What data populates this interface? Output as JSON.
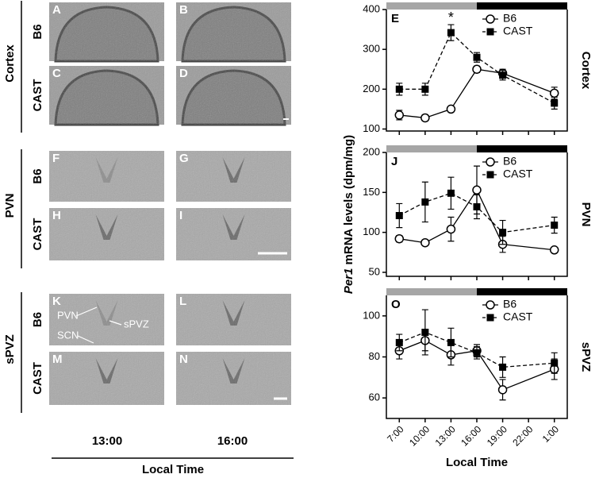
{
  "panels": {
    "rows": [
      {
        "region": "Cortex",
        "strains": [
          "B6",
          "CAST"
        ],
        "letters": [
          [
            "A",
            "B"
          ],
          [
            "C",
            "D"
          ]
        ]
      },
      {
        "region": "PVN",
        "strains": [
          "B6",
          "CAST"
        ],
        "letters": [
          [
            "F",
            "G"
          ],
          [
            "H",
            "I"
          ]
        ]
      },
      {
        "region": "sPVZ",
        "strains": [
          "B6",
          "CAST"
        ],
        "letters": [
          [
            "K",
            "L"
          ],
          [
            "M",
            "N"
          ]
        ]
      }
    ],
    "annotations": [
      "PVN",
      "SCN",
      "sPVZ"
    ],
    "times": [
      "13:00",
      "16:00"
    ],
    "xlabel": "Local Time"
  },
  "ylabel": [
    "Per1",
    "mRNA levels (dpm/mg)"
  ],
  "chart_data": [
    {
      "type": "line",
      "panel": "E",
      "region": "Cortex",
      "x": [
        7,
        10,
        13,
        16,
        19,
        25
      ],
      "xlim": [
        5.5,
        26.5
      ],
      "xticks": [
        {
          "value": 7,
          "label": "7:00"
        },
        {
          "value": 10,
          "label": "10:00"
        },
        {
          "value": 13,
          "label": "13:00"
        },
        {
          "value": 16,
          "label": "16:00"
        },
        {
          "value": 19,
          "label": "19:00"
        },
        {
          "value": 22,
          "label": "22:00"
        },
        {
          "value": 25,
          "label": "1:00"
        }
      ],
      "ylim": [
        95,
        400
      ],
      "yticks": [
        100,
        200,
        300,
        400
      ],
      "lights_off": 16,
      "legend": "upper right",
      "annotations": [
        {
          "text": "*",
          "x": 13,
          "y": 378
        }
      ],
      "series": [
        {
          "name": "B6",
          "color": "#000000",
          "marker": "circle",
          "dashed": false,
          "values": [
            135,
            128,
            150,
            250,
            240,
            190
          ],
          "errors": [
            12,
            8,
            5,
            8,
            10,
            15
          ]
        },
        {
          "name": "CAST",
          "color": "#000000",
          "marker": "square",
          "dashed": true,
          "values": [
            200,
            200,
            342,
            280,
            235,
            165
          ],
          "errors": [
            15,
            15,
            20,
            12,
            12,
            15
          ]
        }
      ]
    },
    {
      "type": "line",
      "panel": "J",
      "region": "PVN",
      "x": [
        7,
        10,
        13,
        16,
        19,
        25
      ],
      "xlim": [
        5.5,
        26.5
      ],
      "ylim": [
        45,
        200
      ],
      "yticks": [
        50,
        100,
        150,
        200
      ],
      "lights_off": 16,
      "legend": "upper right",
      "series": [
        {
          "name": "B6",
          "color": "#000000",
          "marker": "circle",
          "dashed": false,
          "values": [
            92,
            87,
            104,
            153,
            85,
            78
          ],
          "errors": [
            4,
            3,
            15,
            30,
            10,
            3
          ]
        },
        {
          "name": "CAST",
          "color": "#000000",
          "marker": "square",
          "dashed": true,
          "values": [
            121,
            138,
            149,
            132,
            100,
            109
          ],
          "errors": [
            15,
            25,
            20,
            15,
            15,
            10
          ]
        }
      ]
    },
    {
      "type": "line",
      "panel": "O",
      "region": "sPVZ",
      "x": [
        7,
        10,
        13,
        16,
        19,
        25
      ],
      "xlim": [
        5.5,
        26.5
      ],
      "xticks": [
        {
          "value": 7,
          "label": "7:00"
        },
        {
          "value": 10,
          "label": "10:00"
        },
        {
          "value": 13,
          "label": "13:00"
        },
        {
          "value": 16,
          "label": "16:00"
        },
        {
          "value": 19,
          "label": "19:00"
        },
        {
          "value": 22,
          "label": "22:00"
        },
        {
          "value": 25,
          "label": "1:00"
        }
      ],
      "xlabel": "Local Time",
      "ylim": [
        50,
        110
      ],
      "yticks": [
        60,
        80,
        100
      ],
      "lights_off": 16,
      "legend": "upper right",
      "series": [
        {
          "name": "B6",
          "color": "#000000",
          "marker": "circle",
          "dashed": false,
          "values": [
            83,
            88,
            81,
            83,
            64,
            74
          ],
          "errors": [
            4,
            5,
            5,
            3,
            5,
            5
          ]
        },
        {
          "name": "CAST",
          "color": "#000000",
          "marker": "square",
          "dashed": true,
          "values": [
            87,
            92,
            87,
            82,
            75,
            77
          ],
          "errors": [
            4,
            11,
            7,
            3,
            5,
            5
          ]
        }
      ]
    }
  ]
}
